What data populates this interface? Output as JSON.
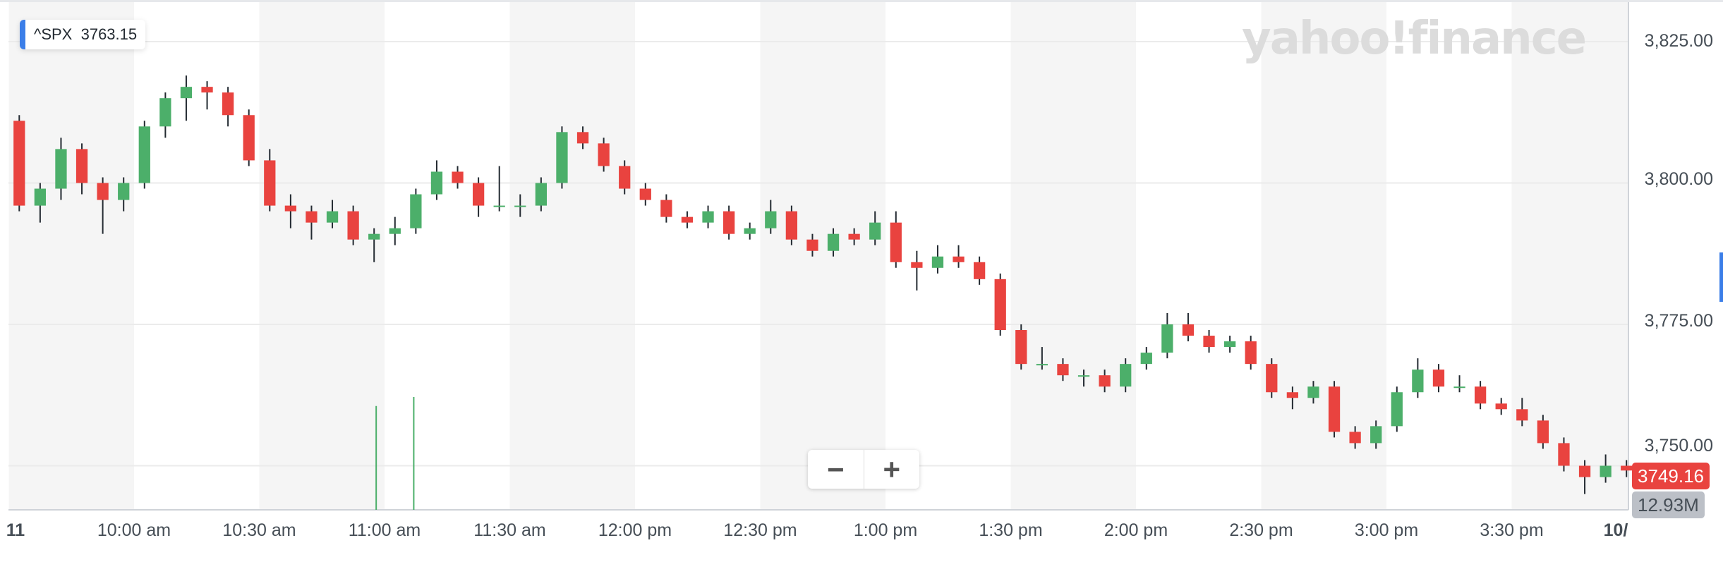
{
  "legend": {
    "symbol": "^SPX",
    "value": "3763.15",
    "accent": "#3b7ee8"
  },
  "logo": "yahoo!finance",
  "price_tag": "3749.16",
  "volume_tag": "12.93M",
  "zoom": {
    "minus": "−",
    "plus": "+"
  },
  "colors": {
    "up": "#4caf6a",
    "down": "#e9433f",
    "wick": "#232a31",
    "band": "#f5f5f5",
    "price_tag": "#e9433f",
    "volume_tag": "#bcc0c7"
  },
  "chart_data": {
    "type": "candlestick",
    "interval": "5m",
    "title": "",
    "xlabel": "",
    "ylabel": "",
    "ylim": [
      3742,
      3830
    ],
    "grid": true,
    "y_ticks": [
      "3,825.00",
      "3,800.00",
      "3,775.00",
      "3,750.00"
    ],
    "y_tick_values": [
      3825,
      3800,
      3775,
      3750
    ],
    "x_ticks": [
      "11",
      "10:00 am",
      "10:30 am",
      "11:00 am",
      "11:30 am",
      "12:00 pm",
      "12:30 pm",
      "1:00 pm",
      "1:30 pm",
      "2:00 pm",
      "2:30 pm",
      "3:00 pm",
      "3:30 pm",
      "10/"
    ],
    "x_tick_minutes": [
      0,
      30,
      60,
      90,
      120,
      150,
      180,
      210,
      240,
      270,
      300,
      330,
      360,
      390
    ],
    "ohlc": [
      [
        3811,
        3812,
        3795,
        3796
      ],
      [
        3796,
        3800,
        3793,
        3799
      ],
      [
        3799,
        3808,
        3797,
        3806
      ],
      [
        3806,
        3807,
        3798,
        3800
      ],
      [
        3800,
        3801,
        3791,
        3797
      ],
      [
        3797,
        3801,
        3795,
        3800
      ],
      [
        3800,
        3811,
        3799,
        3810
      ],
      [
        3810,
        3816,
        3808,
        3815
      ],
      [
        3815,
        3819,
        3811,
        3817
      ],
      [
        3817,
        3818,
        3813,
        3816
      ],
      [
        3816,
        3817,
        3810,
        3812
      ],
      [
        3812,
        3813,
        3803,
        3804
      ],
      [
        3804,
        3806,
        3795,
        3796
      ],
      [
        3796,
        3798,
        3792,
        3795
      ],
      [
        3795,
        3796,
        3790,
        3793
      ],
      [
        3793,
        3797,
        3792,
        3795
      ],
      [
        3795,
        3796,
        3789,
        3790
      ],
      [
        3790,
        3792,
        3786,
        3791
      ],
      [
        3791,
        3794,
        3789,
        3792
      ],
      [
        3792,
        3799,
        3791,
        3798
      ],
      [
        3798,
        3804,
        3797,
        3802
      ],
      [
        3802,
        3803,
        3799,
        3800
      ],
      [
        3800,
        3801,
        3794,
        3796
      ],
      [
        3796,
        3803,
        3795,
        3796
      ],
      [
        3796,
        3798,
        3794,
        3796
      ],
      [
        3796,
        3801,
        3795,
        3800
      ],
      [
        3800,
        3810,
        3799,
        3809
      ],
      [
        3809,
        3810,
        3806,
        3807
      ],
      [
        3807,
        3808,
        3802,
        3803
      ],
      [
        3803,
        3804,
        3798,
        3799
      ],
      [
        3799,
        3800,
        3796,
        3797
      ],
      [
        3797,
        3798,
        3793,
        3794
      ],
      [
        3794,
        3795,
        3792,
        3793
      ],
      [
        3793,
        3796,
        3792,
        3795
      ],
      [
        3795,
        3796,
        3790,
        3791
      ],
      [
        3791,
        3793,
        3790,
        3792
      ],
      [
        3792,
        3797,
        3791,
        3795
      ],
      [
        3795,
        3796,
        3789,
        3790
      ],
      [
        3790,
        3791,
        3787,
        3788
      ],
      [
        3788,
        3792,
        3787,
        3791
      ],
      [
        3791,
        3792,
        3789,
        3790
      ],
      [
        3790,
        3795,
        3789,
        3793
      ],
      [
        3793,
        3795,
        3785,
        3786
      ],
      [
        3786,
        3788,
        3781,
        3785
      ],
      [
        3785,
        3789,
        3784,
        3787
      ],
      [
        3787,
        3789,
        3785,
        3786
      ],
      [
        3786,
        3787,
        3782,
        3783
      ],
      [
        3783,
        3784,
        3773,
        3774
      ],
      [
        3774,
        3775,
        3767,
        3768
      ],
      [
        3768,
        3771,
        3767,
        3768
      ],
      [
        3768,
        3769,
        3765,
        3766
      ],
      [
        3766,
        3767,
        3764,
        3766
      ],
      [
        3766,
        3767,
        3763,
        3764
      ],
      [
        3764,
        3769,
        3763,
        3768
      ],
      [
        3768,
        3771,
        3767,
        3770
      ],
      [
        3770,
        3777,
        3769,
        3775
      ],
      [
        3775,
        3777,
        3772,
        3773
      ],
      [
        3773,
        3774,
        3770,
        3771
      ],
      [
        3771,
        3773,
        3770,
        3772
      ],
      [
        3772,
        3773,
        3767,
        3768
      ],
      [
        3768,
        3769,
        3762,
        3763
      ],
      [
        3763,
        3764,
        3760,
        3762
      ],
      [
        3762,
        3765,
        3761,
        3764
      ],
      [
        3764,
        3765,
        3755,
        3756
      ],
      [
        3756,
        3757,
        3753,
        3754
      ],
      [
        3754,
        3758,
        3753,
        3757
      ],
      [
        3757,
        3764,
        3756,
        3763
      ],
      [
        3763,
        3769,
        3762,
        3767
      ],
      [
        3767,
        3768,
        3763,
        3764
      ],
      [
        3764,
        3766,
        3763,
        3764
      ],
      [
        3764,
        3765,
        3760,
        3761
      ],
      [
        3761,
        3762,
        3759,
        3760
      ],
      [
        3760,
        3762,
        3757,
        3758
      ],
      [
        3758,
        3759,
        3753,
        3754
      ],
      [
        3754,
        3755,
        3749,
        3750
      ],
      [
        3750,
        3751,
        3745,
        3748
      ],
      [
        3748,
        3752,
        3747,
        3750
      ],
      [
        3750,
        3751,
        3748,
        3749.16
      ]
    ],
    "volume_relative": {
      "minutes": [
        88,
        97
      ],
      "fractions": [
        0.92,
        1.0
      ]
    }
  }
}
